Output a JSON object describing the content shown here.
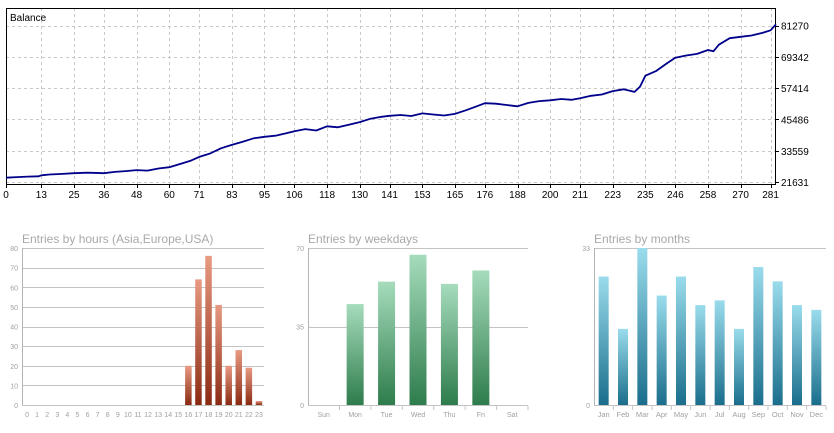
{
  "chart_data": [
    {
      "type": "line",
      "title": "Balance",
      "x_ticks": [
        0,
        13,
        25,
        36,
        48,
        60,
        71,
        83,
        95,
        106,
        118,
        130,
        141,
        153,
        165,
        176,
        188,
        200,
        211,
        223,
        235,
        246,
        258,
        270,
        281
      ],
      "y_ticks": [
        21631,
        33559,
        45486,
        57414,
        69342,
        81270
      ],
      "xlim": [
        0,
        283
      ],
      "ylim": [
        20500,
        88000
      ],
      "grid": true,
      "series": [
        {
          "color": "#00008b",
          "x": [
            0,
            4,
            8,
            12,
            13,
            16,
            20,
            25,
            30,
            36,
            40,
            44,
            48,
            52,
            56,
            60,
            64,
            68,
            71,
            75,
            79,
            83,
            87,
            91,
            95,
            99,
            103,
            106,
            110,
            114,
            118,
            122,
            126,
            130,
            134,
            138,
            141,
            145,
            149,
            153,
            157,
            161,
            165,
            169,
            173,
            176,
            180,
            184,
            188,
            192,
            196,
            200,
            204,
            208,
            211,
            215,
            219,
            223,
            227,
            231,
            233,
            235,
            239,
            243,
            246,
            250,
            254,
            258,
            260,
            262,
            266,
            270,
            274,
            278,
            281,
            283
          ],
          "y": [
            23300,
            23500,
            23700,
            23800,
            24200,
            24500,
            24700,
            25000,
            25200,
            25000,
            25500,
            25800,
            26200,
            26000,
            26800,
            27300,
            28500,
            29800,
            31200,
            32500,
            34500,
            35800,
            37000,
            38300,
            38900,
            39300,
            40200,
            41000,
            41800,
            41300,
            42900,
            42500,
            43500,
            44500,
            45800,
            46500,
            46900,
            47200,
            46800,
            47800,
            47400,
            47000,
            47600,
            49000,
            50500,
            51700,
            51500,
            51000,
            50500,
            51800,
            52500,
            52800,
            53300,
            53000,
            53600,
            54500,
            55000,
            56300,
            57000,
            56000,
            58000,
            62200,
            64000,
            67000,
            69000,
            69900,
            70500,
            72000,
            71500,
            74000,
            76500,
            77000,
            77500,
            78500,
            79500,
            81800
          ]
        }
      ]
    },
    {
      "type": "bar",
      "title": "Entries by hours (Asia,Europe,USA)",
      "categories": [
        "0",
        "1",
        "2",
        "3",
        "4",
        "5",
        "6",
        "7",
        "8",
        "9",
        "10",
        "11",
        "12",
        "13",
        "14",
        "15",
        "16",
        "17",
        "18",
        "19",
        "20",
        "21",
        "22",
        "23"
      ],
      "values": [
        0,
        0,
        0,
        0,
        0,
        0,
        0,
        0,
        0,
        0,
        0,
        0,
        0,
        0,
        0,
        0,
        20,
        64,
        76,
        51,
        20,
        28,
        19,
        2
      ],
      "y_ticks": [
        0,
        10,
        20,
        30,
        40,
        50,
        60,
        70,
        80
      ],
      "ylim": [
        0,
        80
      ],
      "color_top": "#e89a82",
      "color_bottom": "#8b2a12"
    },
    {
      "type": "bar",
      "title": "Entries by weekdays",
      "categories": [
        "Sun",
        "Mon",
        "Tue",
        "Wed",
        "Thu",
        "Fri",
        "Sat"
      ],
      "values": [
        0,
        45,
        55,
        67,
        54,
        60,
        0
      ],
      "y_ticks": [
        0,
        35,
        70
      ],
      "ylim": [
        0,
        70
      ],
      "color_top": "#a6dcbc",
      "color_bottom": "#2e7c4c"
    },
    {
      "type": "bar",
      "title": "Entries by months",
      "categories": [
        "Jan",
        "Feb",
        "Mar",
        "Apr",
        "May",
        "Jun",
        "Jul",
        "Aug",
        "Sep",
        "Oct",
        "Nov",
        "Dec"
      ],
      "values": [
        27,
        16,
        33,
        23,
        27,
        21,
        22,
        16,
        29,
        26,
        21,
        20
      ],
      "y_ticks": [
        0,
        33
      ],
      "ylim": [
        0,
        33
      ],
      "color_top": "#9adcec",
      "color_bottom": "#1a6e8c"
    }
  ]
}
